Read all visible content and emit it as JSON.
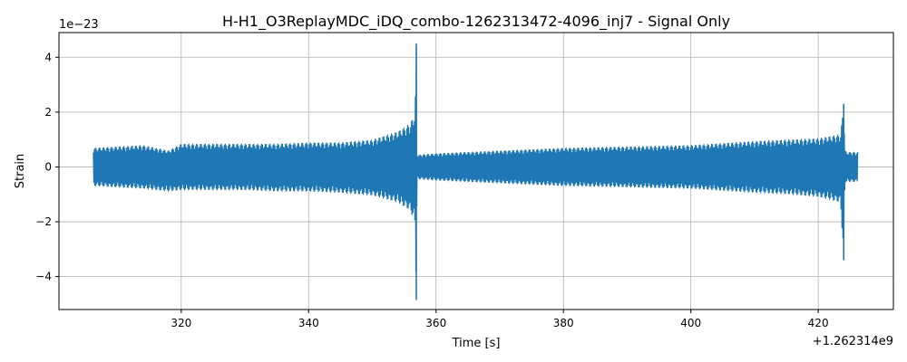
{
  "chart_data": {
    "type": "line",
    "title": "H-H1_O3ReplayMDC_iDQ_combo-1262313472-4096_inj7 - Signal Only",
    "xlabel": "Time [s]",
    "ylabel": "Strain",
    "x_offset_label": "+1.262314e9",
    "y_scale_label": "1e−23",
    "x_ticks": [
      320,
      340,
      360,
      380,
      400,
      420
    ],
    "x_tick_labels": [
      "320",
      "340",
      "360",
      "380",
      "400",
      "420"
    ],
    "y_ticks": [
      -4,
      -2,
      0,
      2,
      4
    ],
    "y_tick_labels": [
      "−4",
      "−2",
      "0",
      "2",
      "4"
    ],
    "xlim": [
      300.8,
      431.8
    ],
    "ylim": [
      -5.2,
      4.9
    ],
    "grid": true,
    "series_color": "#1f77b4",
    "series": [
      {
        "x": [
          306.2,
          310,
          314,
          318,
          320,
          325,
          330,
          335,
          340,
          345,
          350,
          354,
          356,
          356.7,
          356.9,
          357.0,
          357.2,
          360,
          365,
          370,
          380,
          390,
          400,
          410,
          415,
          420,
          423.5,
          424.0,
          424.2,
          424.5,
          426.2
        ],
        "y_max": [
          0.7,
          0.75,
          0.8,
          0.6,
          0.85,
          0.85,
          0.85,
          0.85,
          0.9,
          0.9,
          1.0,
          1.3,
          1.6,
          2.0,
          4.5,
          0.5,
          0.45,
          0.5,
          0.55,
          0.6,
          0.7,
          0.75,
          0.8,
          0.95,
          1.0,
          1.05,
          1.2,
          2.3,
          0.6,
          0.55,
          0.55
        ],
        "y_min": [
          -0.7,
          -0.75,
          -0.8,
          -0.9,
          -0.85,
          -0.85,
          -0.85,
          -0.9,
          -0.9,
          -0.95,
          -1.05,
          -1.3,
          -1.6,
          -2.1,
          -4.85,
          -0.45,
          -0.45,
          -0.5,
          -0.55,
          -0.6,
          -0.7,
          -0.75,
          -0.8,
          -0.95,
          -1.0,
          -1.1,
          -1.3,
          -3.4,
          -0.55,
          -0.55,
          -0.55
        ]
      }
    ]
  }
}
